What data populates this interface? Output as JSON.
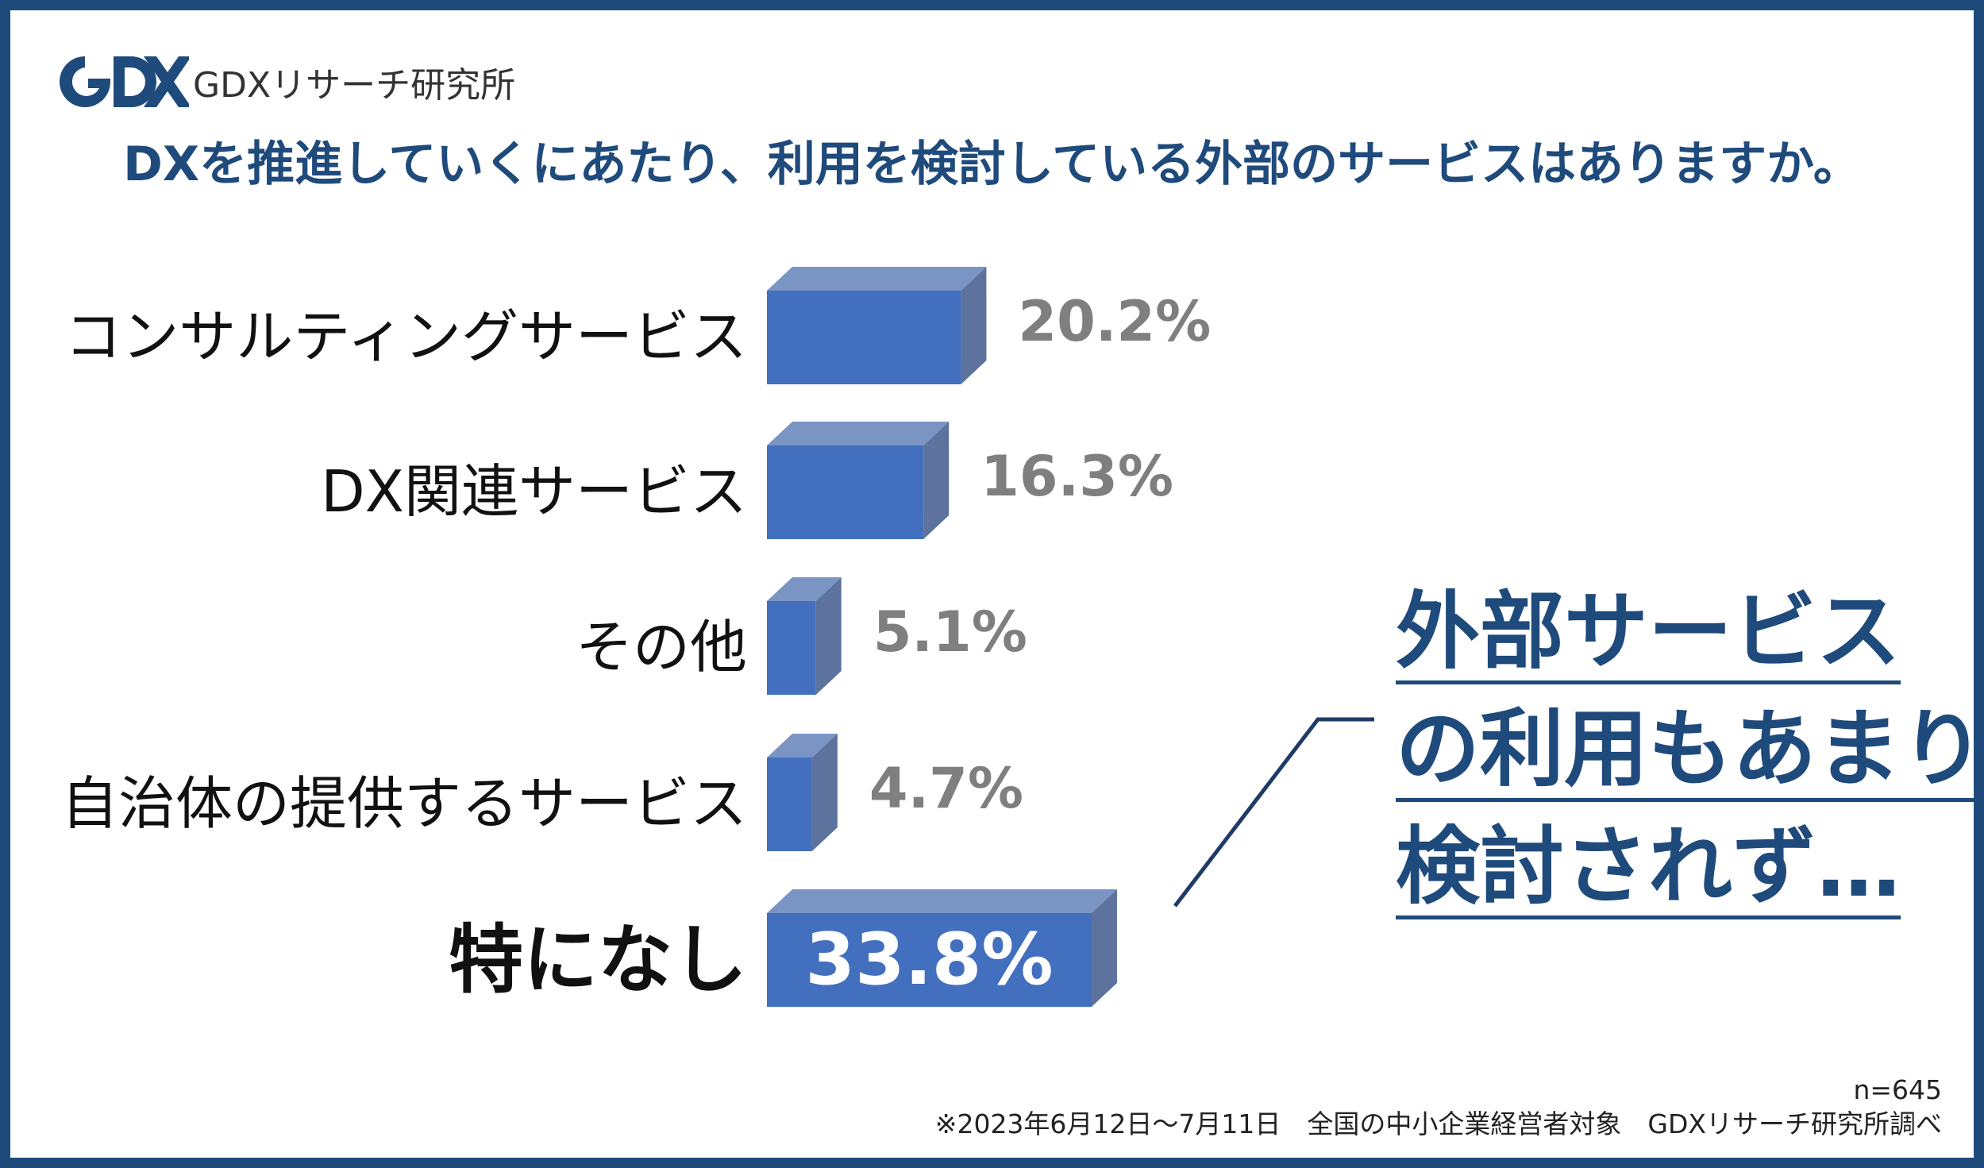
{
  "header": {
    "logo_name": "GDXリサーチ研究所",
    "logo_mark": "GDX"
  },
  "colors": {
    "frame": "#1f4a7c",
    "bar_front": "#4270bf",
    "bar_top": "#7a94c3",
    "bar_side": "#5d739e",
    "value_gray": "#7f7f7f",
    "title": "#1f4a7c"
  },
  "chart_data": {
    "type": "bar",
    "orientation": "horizontal",
    "title": "DXを推進していくにあたり、利用を検討している外部のサービスはありますか。",
    "categories": [
      "コンサルティングサービス",
      "DX関連サービス",
      "その他",
      "自治体の提供するサービス",
      "特になし"
    ],
    "values": [
      20.2,
      16.3,
      5.1,
      4.7,
      33.8
    ],
    "value_labels": [
      "20.2%",
      "16.3%",
      "5.1%",
      "4.7%",
      "33.8%"
    ],
    "highlight_index": 4,
    "unit": "%",
    "xlim": [
      0,
      40
    ],
    "grid": false,
    "legend": "none"
  },
  "callout": {
    "lines": [
      "外部サービス",
      "の利用もあまり",
      "検討されず…"
    ]
  },
  "footnote": {
    "sample": "n=645",
    "source": "※2023年6月12日～7月11日　全国の中小企業経営者対象　GDXリサーチ研究所調べ"
  }
}
